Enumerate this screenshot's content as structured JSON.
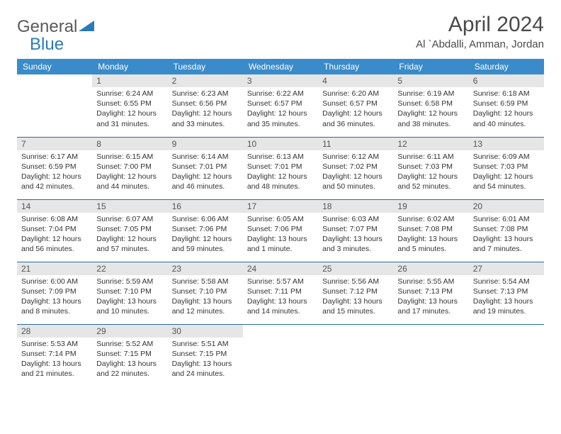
{
  "brand": {
    "part1": "General",
    "part2": "Blue"
  },
  "title": "April 2024",
  "location": "Al `Abdalli, Amman, Jordan",
  "colors": {
    "header_bg": "#3a8bc9",
    "header_text": "#ffffff",
    "daynum_bg": "#e6e6e6",
    "row_border": "#2a6aa0",
    "brand_gray": "#5a5a5a",
    "brand_blue": "#2a7ab8"
  },
  "fonts": {
    "title_size": 30,
    "location_size": 15,
    "header_size": 12,
    "cell_size": 10.5
  },
  "day_headers": [
    "Sunday",
    "Monday",
    "Tuesday",
    "Wednesday",
    "Thursday",
    "Friday",
    "Saturday"
  ],
  "weeks": [
    [
      null,
      {
        "n": "1",
        "sr": "6:24 AM",
        "ss": "6:55 PM",
        "dl": "12 hours and 31 minutes."
      },
      {
        "n": "2",
        "sr": "6:23 AM",
        "ss": "6:56 PM",
        "dl": "12 hours and 33 minutes."
      },
      {
        "n": "3",
        "sr": "6:22 AM",
        "ss": "6:57 PM",
        "dl": "12 hours and 35 minutes."
      },
      {
        "n": "4",
        "sr": "6:20 AM",
        "ss": "6:57 PM",
        "dl": "12 hours and 36 minutes."
      },
      {
        "n": "5",
        "sr": "6:19 AM",
        "ss": "6:58 PM",
        "dl": "12 hours and 38 minutes."
      },
      {
        "n": "6",
        "sr": "6:18 AM",
        "ss": "6:59 PM",
        "dl": "12 hours and 40 minutes."
      }
    ],
    [
      {
        "n": "7",
        "sr": "6:17 AM",
        "ss": "6:59 PM",
        "dl": "12 hours and 42 minutes."
      },
      {
        "n": "8",
        "sr": "6:15 AM",
        "ss": "7:00 PM",
        "dl": "12 hours and 44 minutes."
      },
      {
        "n": "9",
        "sr": "6:14 AM",
        "ss": "7:01 PM",
        "dl": "12 hours and 46 minutes."
      },
      {
        "n": "10",
        "sr": "6:13 AM",
        "ss": "7:01 PM",
        "dl": "12 hours and 48 minutes."
      },
      {
        "n": "11",
        "sr": "6:12 AM",
        "ss": "7:02 PM",
        "dl": "12 hours and 50 minutes."
      },
      {
        "n": "12",
        "sr": "6:11 AM",
        "ss": "7:03 PM",
        "dl": "12 hours and 52 minutes."
      },
      {
        "n": "13",
        "sr": "6:09 AM",
        "ss": "7:03 PM",
        "dl": "12 hours and 54 minutes."
      }
    ],
    [
      {
        "n": "14",
        "sr": "6:08 AM",
        "ss": "7:04 PM",
        "dl": "12 hours and 56 minutes."
      },
      {
        "n": "15",
        "sr": "6:07 AM",
        "ss": "7:05 PM",
        "dl": "12 hours and 57 minutes."
      },
      {
        "n": "16",
        "sr": "6:06 AM",
        "ss": "7:06 PM",
        "dl": "12 hours and 59 minutes."
      },
      {
        "n": "17",
        "sr": "6:05 AM",
        "ss": "7:06 PM",
        "dl": "13 hours and 1 minute."
      },
      {
        "n": "18",
        "sr": "6:03 AM",
        "ss": "7:07 PM",
        "dl": "13 hours and 3 minutes."
      },
      {
        "n": "19",
        "sr": "6:02 AM",
        "ss": "7:08 PM",
        "dl": "13 hours and 5 minutes."
      },
      {
        "n": "20",
        "sr": "6:01 AM",
        "ss": "7:08 PM",
        "dl": "13 hours and 7 minutes."
      }
    ],
    [
      {
        "n": "21",
        "sr": "6:00 AM",
        "ss": "7:09 PM",
        "dl": "13 hours and 8 minutes."
      },
      {
        "n": "22",
        "sr": "5:59 AM",
        "ss": "7:10 PM",
        "dl": "13 hours and 10 minutes."
      },
      {
        "n": "23",
        "sr": "5:58 AM",
        "ss": "7:10 PM",
        "dl": "13 hours and 12 minutes."
      },
      {
        "n": "24",
        "sr": "5:57 AM",
        "ss": "7:11 PM",
        "dl": "13 hours and 14 minutes."
      },
      {
        "n": "25",
        "sr": "5:56 AM",
        "ss": "7:12 PM",
        "dl": "13 hours and 15 minutes."
      },
      {
        "n": "26",
        "sr": "5:55 AM",
        "ss": "7:13 PM",
        "dl": "13 hours and 17 minutes."
      },
      {
        "n": "27",
        "sr": "5:54 AM",
        "ss": "7:13 PM",
        "dl": "13 hours and 19 minutes."
      }
    ],
    [
      {
        "n": "28",
        "sr": "5:53 AM",
        "ss": "7:14 PM",
        "dl": "13 hours and 21 minutes."
      },
      {
        "n": "29",
        "sr": "5:52 AM",
        "ss": "7:15 PM",
        "dl": "13 hours and 22 minutes."
      },
      {
        "n": "30",
        "sr": "5:51 AM",
        "ss": "7:15 PM",
        "dl": "13 hours and 24 minutes."
      },
      null,
      null,
      null,
      null
    ]
  ],
  "labels": {
    "sunrise": "Sunrise:",
    "sunset": "Sunset:",
    "daylight": "Daylight:"
  }
}
